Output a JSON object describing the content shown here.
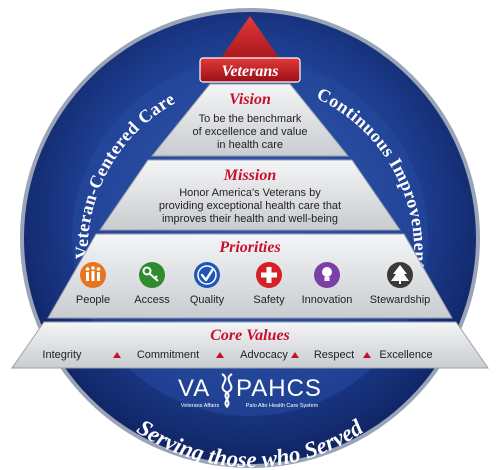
{
  "apex": {
    "label": "Veterans"
  },
  "ring": {
    "left_arc": "Veteran-Centered Care",
    "right_arc": "Continuous Improvement",
    "bottom_arc": "Serving those who Served"
  },
  "vision": {
    "title": "Vision",
    "lines": [
      "To be the benchmark",
      "of excellence and value",
      "in health care"
    ]
  },
  "mission": {
    "title": "Mission",
    "lines": [
      "Honor America's Veterans by",
      "providing exceptional health care that",
      "improves their health and well-being"
    ]
  },
  "priorities": {
    "title": "Priorities",
    "items": [
      {
        "label": "People",
        "icon": "people-icon",
        "color": "#e8741e"
      },
      {
        "label": "Access",
        "icon": "key-icon",
        "color": "#2e8b2e"
      },
      {
        "label": "Quality",
        "icon": "checkmark-icon",
        "color": "#1f57b8"
      },
      {
        "label": "Safety",
        "icon": "red-cross-icon",
        "color": "#d42027"
      },
      {
        "label": "Innovation",
        "icon": "lightbulb-icon",
        "color": "#7b3fa6"
      },
      {
        "label": "Stewardship",
        "icon": "tree-icon",
        "color": "#3a3a3a"
      }
    ]
  },
  "core_values": {
    "title": "Core Values",
    "items": [
      "Integrity",
      "Commitment",
      "Advocacy",
      "Respect",
      "Excellence"
    ]
  },
  "logo": {
    "left": "VA",
    "right": "PAHCS",
    "sub_left": "Veterans Affairs",
    "sub_right": "Palo Alto Health Care System"
  },
  "colors": {
    "ring_blue": "#17307a",
    "accent_red": "#c8102e",
    "tier_gray": "#d9dbde"
  }
}
